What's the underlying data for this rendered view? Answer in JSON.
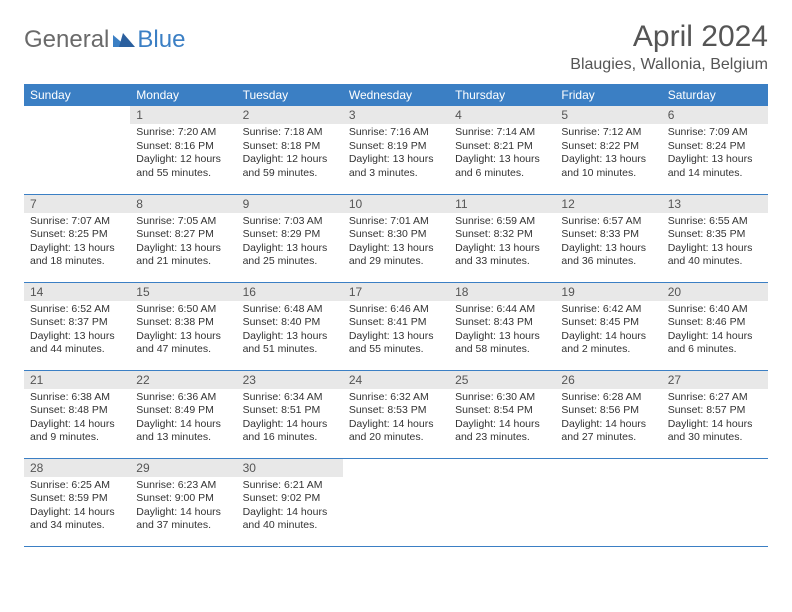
{
  "brand": {
    "part1": "General",
    "part2": "Blue"
  },
  "title": "April 2024",
  "location": "Blaugies, Wallonia, Belgium",
  "colors": {
    "header_bg": "#3b7fc4",
    "header_text": "#ffffff",
    "daynum_bg": "#e8e8e8",
    "daynum_text": "#555555",
    "border": "#3b7fc4",
    "body_text": "#333333",
    "title_text": "#555555"
  },
  "weekdays": [
    "Sunday",
    "Monday",
    "Tuesday",
    "Wednesday",
    "Thursday",
    "Friday",
    "Saturday"
  ],
  "weeks": [
    [
      {
        "day": "",
        "sunrise": "",
        "sunset": "",
        "daylight": ""
      },
      {
        "day": "1",
        "sunrise": "Sunrise: 7:20 AM",
        "sunset": "Sunset: 8:16 PM",
        "daylight": "Daylight: 12 hours and 55 minutes."
      },
      {
        "day": "2",
        "sunrise": "Sunrise: 7:18 AM",
        "sunset": "Sunset: 8:18 PM",
        "daylight": "Daylight: 12 hours and 59 minutes."
      },
      {
        "day": "3",
        "sunrise": "Sunrise: 7:16 AM",
        "sunset": "Sunset: 8:19 PM",
        "daylight": "Daylight: 13 hours and 3 minutes."
      },
      {
        "day": "4",
        "sunrise": "Sunrise: 7:14 AM",
        "sunset": "Sunset: 8:21 PM",
        "daylight": "Daylight: 13 hours and 6 minutes."
      },
      {
        "day": "5",
        "sunrise": "Sunrise: 7:12 AM",
        "sunset": "Sunset: 8:22 PM",
        "daylight": "Daylight: 13 hours and 10 minutes."
      },
      {
        "day": "6",
        "sunrise": "Sunrise: 7:09 AM",
        "sunset": "Sunset: 8:24 PM",
        "daylight": "Daylight: 13 hours and 14 minutes."
      }
    ],
    [
      {
        "day": "7",
        "sunrise": "Sunrise: 7:07 AM",
        "sunset": "Sunset: 8:25 PM",
        "daylight": "Daylight: 13 hours and 18 minutes."
      },
      {
        "day": "8",
        "sunrise": "Sunrise: 7:05 AM",
        "sunset": "Sunset: 8:27 PM",
        "daylight": "Daylight: 13 hours and 21 minutes."
      },
      {
        "day": "9",
        "sunrise": "Sunrise: 7:03 AM",
        "sunset": "Sunset: 8:29 PM",
        "daylight": "Daylight: 13 hours and 25 minutes."
      },
      {
        "day": "10",
        "sunrise": "Sunrise: 7:01 AM",
        "sunset": "Sunset: 8:30 PM",
        "daylight": "Daylight: 13 hours and 29 minutes."
      },
      {
        "day": "11",
        "sunrise": "Sunrise: 6:59 AM",
        "sunset": "Sunset: 8:32 PM",
        "daylight": "Daylight: 13 hours and 33 minutes."
      },
      {
        "day": "12",
        "sunrise": "Sunrise: 6:57 AM",
        "sunset": "Sunset: 8:33 PM",
        "daylight": "Daylight: 13 hours and 36 minutes."
      },
      {
        "day": "13",
        "sunrise": "Sunrise: 6:55 AM",
        "sunset": "Sunset: 8:35 PM",
        "daylight": "Daylight: 13 hours and 40 minutes."
      }
    ],
    [
      {
        "day": "14",
        "sunrise": "Sunrise: 6:52 AM",
        "sunset": "Sunset: 8:37 PM",
        "daylight": "Daylight: 13 hours and 44 minutes."
      },
      {
        "day": "15",
        "sunrise": "Sunrise: 6:50 AM",
        "sunset": "Sunset: 8:38 PM",
        "daylight": "Daylight: 13 hours and 47 minutes."
      },
      {
        "day": "16",
        "sunrise": "Sunrise: 6:48 AM",
        "sunset": "Sunset: 8:40 PM",
        "daylight": "Daylight: 13 hours and 51 minutes."
      },
      {
        "day": "17",
        "sunrise": "Sunrise: 6:46 AM",
        "sunset": "Sunset: 8:41 PM",
        "daylight": "Daylight: 13 hours and 55 minutes."
      },
      {
        "day": "18",
        "sunrise": "Sunrise: 6:44 AM",
        "sunset": "Sunset: 8:43 PM",
        "daylight": "Daylight: 13 hours and 58 minutes."
      },
      {
        "day": "19",
        "sunrise": "Sunrise: 6:42 AM",
        "sunset": "Sunset: 8:45 PM",
        "daylight": "Daylight: 14 hours and 2 minutes."
      },
      {
        "day": "20",
        "sunrise": "Sunrise: 6:40 AM",
        "sunset": "Sunset: 8:46 PM",
        "daylight": "Daylight: 14 hours and 6 minutes."
      }
    ],
    [
      {
        "day": "21",
        "sunrise": "Sunrise: 6:38 AM",
        "sunset": "Sunset: 8:48 PM",
        "daylight": "Daylight: 14 hours and 9 minutes."
      },
      {
        "day": "22",
        "sunrise": "Sunrise: 6:36 AM",
        "sunset": "Sunset: 8:49 PM",
        "daylight": "Daylight: 14 hours and 13 minutes."
      },
      {
        "day": "23",
        "sunrise": "Sunrise: 6:34 AM",
        "sunset": "Sunset: 8:51 PM",
        "daylight": "Daylight: 14 hours and 16 minutes."
      },
      {
        "day": "24",
        "sunrise": "Sunrise: 6:32 AM",
        "sunset": "Sunset: 8:53 PM",
        "daylight": "Daylight: 14 hours and 20 minutes."
      },
      {
        "day": "25",
        "sunrise": "Sunrise: 6:30 AM",
        "sunset": "Sunset: 8:54 PM",
        "daylight": "Daylight: 14 hours and 23 minutes."
      },
      {
        "day": "26",
        "sunrise": "Sunrise: 6:28 AM",
        "sunset": "Sunset: 8:56 PM",
        "daylight": "Daylight: 14 hours and 27 minutes."
      },
      {
        "day": "27",
        "sunrise": "Sunrise: 6:27 AM",
        "sunset": "Sunset: 8:57 PM",
        "daylight": "Daylight: 14 hours and 30 minutes."
      }
    ],
    [
      {
        "day": "28",
        "sunrise": "Sunrise: 6:25 AM",
        "sunset": "Sunset: 8:59 PM",
        "daylight": "Daylight: 14 hours and 34 minutes."
      },
      {
        "day": "29",
        "sunrise": "Sunrise: 6:23 AM",
        "sunset": "Sunset: 9:00 PM",
        "daylight": "Daylight: 14 hours and 37 minutes."
      },
      {
        "day": "30",
        "sunrise": "Sunrise: 6:21 AM",
        "sunset": "Sunset: 9:02 PM",
        "daylight": "Daylight: 14 hours and 40 minutes."
      },
      {
        "day": "",
        "sunrise": "",
        "sunset": "",
        "daylight": ""
      },
      {
        "day": "",
        "sunrise": "",
        "sunset": "",
        "daylight": ""
      },
      {
        "day": "",
        "sunrise": "",
        "sunset": "",
        "daylight": ""
      },
      {
        "day": "",
        "sunrise": "",
        "sunset": "",
        "daylight": ""
      }
    ]
  ]
}
